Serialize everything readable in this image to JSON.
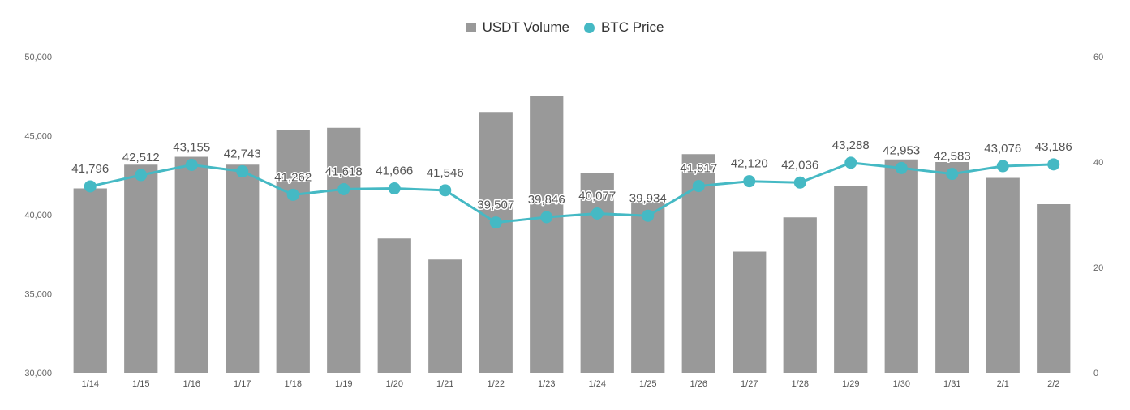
{
  "chart_data": {
    "type": "bar+line",
    "categories": [
      "1/14",
      "1/15",
      "1/16",
      "1/17",
      "1/18",
      "1/19",
      "1/20",
      "1/21",
      "1/22",
      "1/23",
      "1/24",
      "1/25",
      "1/26",
      "1/27",
      "1/28",
      "1/29",
      "1/30",
      "1/31",
      "2/1",
      "2/2"
    ],
    "series": [
      {
        "name": "USDT Volume",
        "type": "bar",
        "axis": "right",
        "color": "#999999",
        "values": [
          35,
          39.5,
          41,
          39.5,
          46,
          46.5,
          25.5,
          21.5,
          49.5,
          52.5,
          38,
          32.5,
          41.5,
          23,
          29.5,
          35.5,
          40.5,
          40,
          37,
          32
        ]
      },
      {
        "name": "BTC Price",
        "type": "line",
        "axis": "left",
        "color": "#45b9c4",
        "values": [
          41796,
          42512,
          43155,
          42743,
          41262,
          41618,
          41666,
          41546,
          39507,
          39846,
          40077,
          39934,
          41817,
          42120,
          42036,
          43288,
          42953,
          42583,
          43076,
          43186
        ],
        "labels": [
          "41,796",
          "42,512",
          "43,155",
          "42,743",
          "41,262",
          "41,618",
          "41,666",
          "41,546",
          "39,507",
          "39,846",
          "40,077",
          "39,934",
          "41,817",
          "42,120",
          "42,036",
          "43,288",
          "42,953",
          "42,583",
          "43,076",
          "43,186"
        ]
      }
    ],
    "left_axis": {
      "ylim": [
        30000,
        50000
      ],
      "ticks": [
        30000,
        35000,
        40000,
        45000,
        50000
      ],
      "tick_labels": [
        "30,000",
        "35,000",
        "40,000",
        "45,000",
        "50,000"
      ]
    },
    "right_axis": {
      "ylim": [
        0,
        60
      ],
      "ticks": [
        0,
        20,
        40,
        60
      ],
      "tick_labels": [
        "0",
        "20",
        "40",
        "60"
      ]
    },
    "grid": false,
    "legend_position": "top-center"
  },
  "legend": [
    {
      "label": "USDT Volume",
      "color": "#999999",
      "shape": "square"
    },
    {
      "label": "BTC Price",
      "color": "#45b9c4",
      "shape": "circle"
    }
  ]
}
